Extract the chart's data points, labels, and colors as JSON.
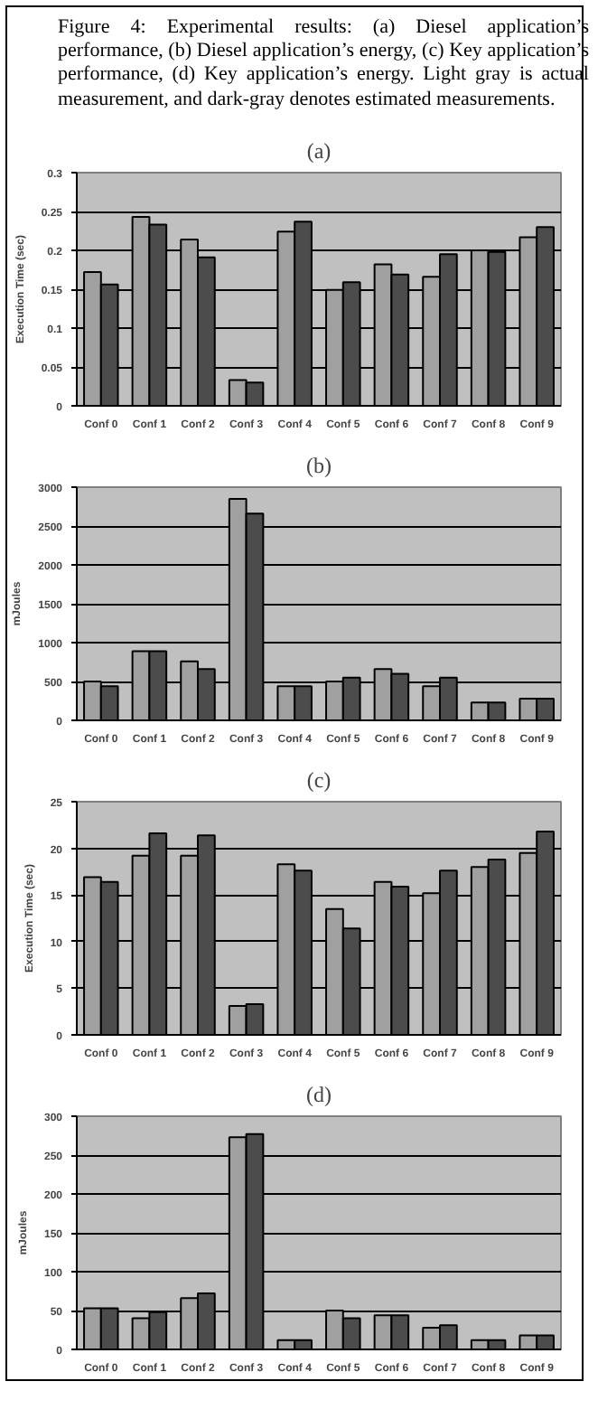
{
  "chart_data": [
    {
      "type": "bar",
      "title": "(a)",
      "annotations": [
        "Figure 4: Experimental results: (a) Diesel application’s performance, (b) Diesel application’s energy, (c) Key application’s performance, (d) Key application’s energy. Light gray is actual measurement, and dark-gray denotes estimated measurements."
      ],
      "ylabel": "Execution Time (sec)",
      "categories": [
        "Conf 0",
        "Conf 1",
        "Conf 2",
        "Conf 3",
        "Conf 4",
        "Conf 5",
        "Conf 6",
        "Conf 7",
        "Conf 8",
        "Conf 9"
      ],
      "series": [
        {
          "color": "#a0a0a0",
          "values": [
            0.172,
            0.243,
            0.214,
            0.033,
            0.224,
            0.149,
            0.182,
            0.166,
            0.2,
            0.217
          ]
        },
        {
          "color": "#4c4c4c",
          "values": [
            0.156,
            0.233,
            0.191,
            0.03,
            0.237,
            0.159,
            0.169,
            0.195,
            0.198,
            0.23
          ]
        }
      ],
      "ylim": [
        0,
        0.3
      ],
      "yticks": [
        0,
        0.05,
        0.1,
        0.15,
        0.2,
        0.25,
        0.3
      ],
      "grid": "y"
    },
    {
      "type": "bar",
      "title": "(b)",
      "ylabel": "mJoules",
      "categories": [
        "Conf 0",
        "Conf 1",
        "Conf 2",
        "Conf 3",
        "Conf 4",
        "Conf 5",
        "Conf 6",
        "Conf 7",
        "Conf 8",
        "Conf 9"
      ],
      "series": [
        {
          "color": "#a0a0a0",
          "values": [
            500,
            890,
            760,
            2850,
            440,
            500,
            660,
            440,
            230,
            280
          ]
        },
        {
          "color": "#4c4c4c",
          "values": [
            440,
            890,
            660,
            2660,
            440,
            550,
            600,
            550,
            230,
            280
          ]
        }
      ],
      "ylim": [
        0,
        3000
      ],
      "yticks": [
        0,
        500,
        1000,
        1500,
        2000,
        2500,
        3000
      ],
      "grid": "y"
    },
    {
      "type": "bar",
      "title": "(c)",
      "ylabel": "Execution Time (sec)",
      "categories": [
        "Conf 0",
        "Conf 1",
        "Conf 2",
        "Conf 3",
        "Conf 4",
        "Conf 5",
        "Conf 6",
        "Conf 7",
        "Conf 8",
        "Conf 9"
      ],
      "series": [
        {
          "color": "#a0a0a0",
          "values": [
            16.9,
            19.2,
            19.2,
            3.1,
            18.3,
            13.5,
            16.4,
            15.2,
            18.0,
            19.5
          ]
        },
        {
          "color": "#4c4c4c",
          "values": [
            16.4,
            21.6,
            21.4,
            3.3,
            17.6,
            11.4,
            15.9,
            17.6,
            18.8,
            21.8
          ]
        }
      ],
      "ylim": [
        0,
        25
      ],
      "yticks": [
        0,
        5,
        10,
        15,
        20,
        25
      ],
      "grid": "y"
    },
    {
      "type": "bar",
      "title": "(d)",
      "ylabel": "mJoules",
      "categories": [
        "Conf 0",
        "Conf 1",
        "Conf 2",
        "Conf 3",
        "Conf 4",
        "Conf 5",
        "Conf 6",
        "Conf 7",
        "Conf 8",
        "Conf 9"
      ],
      "series": [
        {
          "color": "#a0a0a0",
          "values": [
            53,
            40,
            66,
            273,
            12,
            50,
            44,
            28,
            12,
            18
          ]
        },
        {
          "color": "#4c4c4c",
          "values": [
            53,
            48,
            72,
            277,
            12,
            40,
            44,
            31,
            12,
            18
          ]
        }
      ],
      "ylim": [
        0,
        300
      ],
      "yticks": [
        0,
        50,
        100,
        150,
        200,
        250,
        300
      ],
      "grid": "y"
    }
  ]
}
